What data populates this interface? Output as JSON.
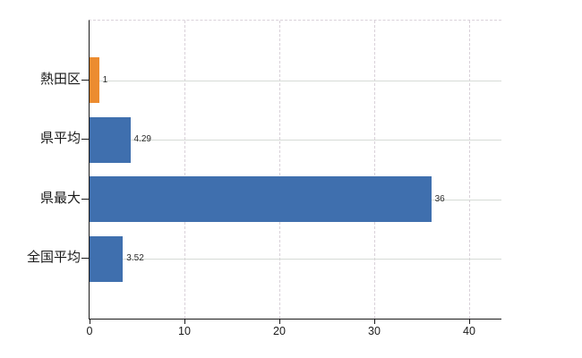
{
  "chart_data": {
    "type": "bar",
    "orientation": "horizontal",
    "title": "",
    "xlabel": "",
    "ylabel": "",
    "categories": [
      "熱田区",
      "県平均",
      "県最大",
      "全国平均"
    ],
    "series": [
      {
        "name": "value",
        "values": [
          1,
          4.29,
          36,
          3.52
        ]
      }
    ],
    "value_labels": [
      "1",
      "4.29",
      "36",
      "3.52"
    ],
    "bar_colors": [
      "#ec8c30",
      "#3f6fae",
      "#3f6fae",
      "#3f6fae"
    ],
    "x_axis": {
      "ticks": [
        0,
        10,
        20,
        30,
        40
      ],
      "tick_labels": [
        "0",
        "10",
        "20",
        "30",
        "40"
      ],
      "min": 0,
      "max": 43.4
    },
    "grid": {
      "horizontal": "solid",
      "vertical": "dashed",
      "top_border": "dashed"
    },
    "legend_position": "none"
  },
  "colors": {
    "background": "#ffffff",
    "bar_orange": "#ec8c30",
    "bar_blue": "#3f6fae",
    "axis": "#1a1a1a",
    "grid_solid": "#d6dbd6",
    "grid_dashed": "#d9d1d9",
    "value_text": "#2b2b2b",
    "label_text": "#1a1a1a"
  }
}
